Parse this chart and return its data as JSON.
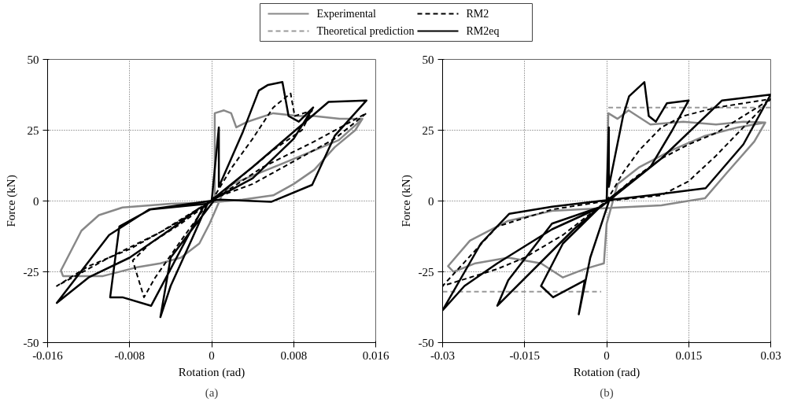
{
  "chart_data": [
    {
      "type": "line",
      "xlabel": "Rotation (rad)",
      "ylabel": "Force (kN)",
      "annotations": [
        "(a)"
      ],
      "xlim": [
        -0.016,
        0.016
      ],
      "ylim": [
        -50,
        50
      ],
      "xticks": [
        -0.016,
        -0.008,
        0,
        0.008,
        0.016
      ],
      "yticks": [
        -50,
        -25,
        0,
        25,
        50
      ],
      "grid": true,
      "series": [
        {
          "color": "#888888",
          "line_style": "solid",
          "x": [
            0,
            0.0003,
            0.0003,
            0.0012,
            0.0019,
            0.0024,
            0.0035,
            0.006,
            0.0085,
            0.01,
            0.0125,
            0.0147,
            0.014,
            0.012,
            0.01,
            0.008,
            0.006,
            0.003,
            0,
            -0.004,
            -0.0087,
            -0.011,
            -0.0127,
            -0.0147,
            -0.0145,
            -0.0106,
            -0.0074,
            -0.005,
            -0.003,
            -0.0012,
            -0.0002,
            0.001,
            0.002,
            0.0071,
            0.0124,
            0.0147
          ],
          "values": [
            0,
            1,
            31,
            32,
            31,
            26,
            28,
            31,
            30,
            30,
            29,
            29,
            25,
            19,
            11,
            6,
            2,
            0.5,
            -0.5,
            -1,
            -2.3,
            -5,
            -10.5,
            -24.5,
            -26.5,
            -26.5,
            -23.5,
            -22,
            -20,
            -15,
            -8,
            2,
            6,
            13.5,
            21.5,
            29
          ]
        },
        {
          "color": "#000000",
          "line_style": "dashed",
          "x": [
            0,
            0.002,
            0.004,
            0.006,
            0.0077,
            0.0081,
            0.0098,
            0.0088,
            0.006,
            0.003,
            0.0004,
            -0.003,
            -0.006,
            -0.0077,
            -0.0066,
            -0.0055,
            -0.003,
            -0.0004,
            0.005,
            0.01,
            0.0151,
            0.012,
            0.008,
            0.004,
            0.0006,
            -0.005,
            -0.01,
            -0.0151,
            -0.012,
            -0.008,
            -0.004,
            -0.0006
          ],
          "values": [
            0,
            12,
            22,
            33,
            38,
            30,
            32,
            25,
            18,
            9,
            1,
            -8,
            -15,
            -21,
            -34,
            -27,
            -14,
            -1,
            12,
            21,
            31,
            22,
            14,
            6,
            1.5,
            -11,
            -20,
            -30,
            -23,
            -17,
            -9,
            -1.5
          ]
        },
        {
          "color": "#000000",
          "line_style": "solid",
          "x": [
            0,
            0.0007,
            0.0007,
            0.003,
            0.0046,
            0.0055,
            0.0069,
            0.0075,
            0.0085,
            0.0099,
            0.008,
            0.004,
            0.0004,
            -0.004,
            -0.005,
            -0.004,
            -0.002,
            -0.0004,
            -0.006,
            -0.009,
            -0.0099,
            -0.0087,
            -0.0059,
            -0.004,
            -0.0008,
            0.004,
            0.0114,
            0.0151,
            0.012,
            0.0098,
            0.0058,
            0.0008,
            -0.0061,
            -0.01,
            -0.0151,
            -0.012,
            -0.008,
            -0.004,
            -0.0012
          ],
          "values": [
            0,
            26,
            5,
            24,
            39,
            41,
            42,
            30,
            28,
            33,
            22,
            8,
            1,
            -20,
            -41,
            -30,
            -14,
            -1,
            -3,
            -9,
            -34,
            -34,
            -37,
            -24,
            -2,
            12,
            35,
            35.5,
            23,
            5.7,
            -0.3,
            0.5,
            -3,
            -12,
            -36,
            -27,
            -20,
            -10,
            -2.5
          ]
        }
      ]
    },
    {
      "type": "line",
      "xlabel": "Rotation (rad)",
      "ylabel": "Force (kN)",
      "annotations": [
        "(b)"
      ],
      "xlim": [
        -0.03,
        0.03
      ],
      "ylim": [
        -50,
        50
      ],
      "xticks": [
        -0.03,
        -0.015,
        0,
        0.015,
        0.03
      ],
      "yticks": [
        -50,
        -25,
        0,
        25,
        50
      ],
      "grid": true,
      "legend": "top",
      "series": [
        {
          "name": "Experimental",
          "color": "#888888",
          "line_style": "solid",
          "x": [
            0,
            0.0003,
            0.002,
            0.004,
            0.008,
            0.014,
            0.02,
            0.025,
            0.029,
            0.027,
            0.022,
            0.018,
            0.01,
            0,
            -0.01,
            -0.018,
            -0.025,
            -0.029,
            -0.028,
            -0.024,
            -0.018,
            -0.012,
            -0.008,
            -0.004,
            -0.0005,
            0,
            0.002,
            0.006,
            0.012,
            0.018,
            0.024,
            0.029
          ],
          "values": [
            0,
            31,
            29,
            32,
            27,
            28,
            27,
            28,
            27.7,
            21,
            10,
            1,
            -1.5,
            -2.5,
            -3.5,
            -7,
            -14,
            -23,
            -25,
            -22,
            -20,
            -22,
            -27,
            -24,
            -22,
            -8,
            6,
            12,
            18,
            23,
            26,
            27.7
          ]
        },
        {
          "name": "Theoretical prediction",
          "color": "#999999",
          "line_style": "dashed",
          "x": [
            -0.03,
            -0.001,
            0,
            0.0003,
            0.03
          ],
          "values": [
            -32,
            -32,
            null,
            33,
            33
          ]
        },
        {
          "name": "RM2",
          "color": "#000000",
          "line_style": "dashed",
          "x": [
            0,
            0.003,
            0.006,
            0.01,
            0.014,
            0.02,
            0.03,
            0.025,
            0.02,
            0.015,
            0.01,
            0,
            -0.01,
            -0.02,
            -0.03,
            -0.025,
            -0.02,
            -0.015,
            -0.008,
            0,
            0.005,
            0.01,
            0.015,
            0.02,
            0.03
          ],
          "values": [
            0,
            10,
            18,
            26,
            30,
            33,
            36,
            26,
            16,
            7,
            2,
            0,
            -3,
            -9,
            -30,
            -27,
            -24,
            -20,
            -12,
            0,
            8,
            15,
            20,
            24,
            36
          ]
        },
        {
          "name": "RM2eq",
          "color": "#000000",
          "line_style": "solid",
          "x": [
            0,
            0.0004,
            0.0004,
            0.003,
            0.0041,
            0.0069,
            0.0077,
            0.009,
            0.011,
            0.015,
            0.012,
            0.008,
            0.0006,
            -0.003,
            -0.0051,
            -0.004,
            -0.0098,
            -0.012,
            -0.008,
            -0.0006,
            -0.006,
            -0.02,
            -0.018,
            -0.01,
            -0.001,
            0.01,
            0.0211,
            0.03,
            0.025,
            0.0181,
            0.008,
            0.001,
            -0.01,
            -0.0178,
            -0.023,
            -0.03,
            -0.026,
            -0.02,
            -0.01,
            -0.0015
          ],
          "values": [
            0,
            26,
            5,
            30,
            37,
            42,
            30,
            28,
            34.5,
            35.5,
            25,
            12,
            1,
            -20,
            -40,
            -28,
            -34,
            -30,
            -15,
            -1,
            -10,
            -37,
            -28,
            -8,
            -2,
            15,
            35.5,
            37.6,
            20,
            4.5,
            2,
            0.5,
            -2,
            -4.5,
            -15,
            -38.6,
            -30,
            -22,
            -10,
            -2.5
          ]
        }
      ]
    }
  ]
}
